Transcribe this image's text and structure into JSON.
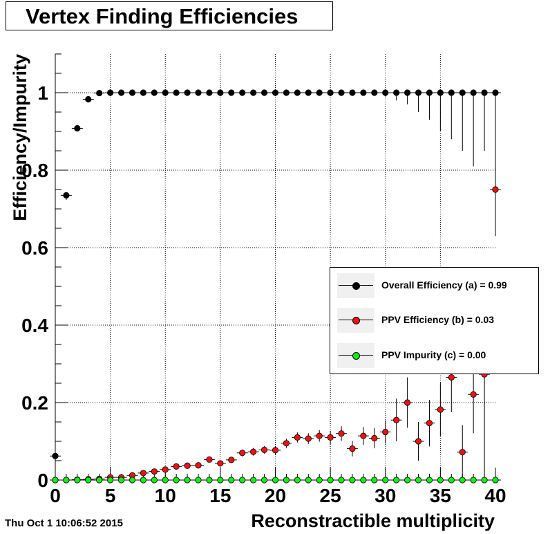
{
  "title": "Vertex Finding Efficiencies",
  "timestamp": "Thu Oct  1 10:06:52 2015",
  "legend": [
    {
      "label": "Overall Efficiency (a) = 0.99",
      "color": "#000000"
    },
    {
      "label": "PPV Efficiency (b) = 0.03",
      "color": "#ee1111"
    },
    {
      "label": "PPV Impurity (c) = 0.00",
      "color": "#11ee11"
    }
  ],
  "chart_data": {
    "type": "scatter",
    "title": "Vertex Finding Efficiencies",
    "xlabel": "Reconstractible multiplicity",
    "ylabel": "Efficiency/Impurity",
    "xlim": [
      0,
      40
    ],
    "ylim": [
      0,
      1.1
    ],
    "xticks": [
      0,
      5,
      10,
      15,
      20,
      25,
      30,
      35,
      40
    ],
    "yticks": [
      0,
      0.2,
      0.4,
      0.6,
      0.8,
      1
    ],
    "ytick_labels": [
      "0",
      "0.2",
      "0.4",
      "0.6",
      "0.8",
      "1"
    ],
    "grid": true,
    "legend_position": "right",
    "x": [
      0,
      1,
      2,
      3,
      4,
      5,
      6,
      7,
      8,
      9,
      10,
      11,
      12,
      13,
      14,
      15,
      16,
      17,
      18,
      19,
      20,
      21,
      22,
      23,
      24,
      25,
      26,
      27,
      28,
      29,
      30,
      31,
      32,
      33,
      34,
      35,
      36,
      37,
      38,
      39,
      40
    ],
    "series": [
      {
        "name": "Overall Efficiency (a) = 0.99",
        "color": "#000000",
        "values": [
          0.062,
          0.735,
          0.908,
          0.983,
          0.999,
          1,
          1,
          1,
          1,
          1,
          1,
          1,
          1,
          1,
          1,
          1,
          1,
          1,
          1,
          1,
          1,
          1,
          1,
          1,
          1,
          1,
          1,
          1,
          1,
          1,
          1,
          1,
          1,
          1,
          1,
          1,
          1,
          1,
          1,
          1,
          1
        ],
        "err_low": [
          0.004,
          0.012,
          0.006,
          0.005,
          0.003,
          0.002,
          0.001,
          0.001,
          0.001,
          0.001,
          0.001,
          0.001,
          0.001,
          0.001,
          0.001,
          0.001,
          0.001,
          0.001,
          0.001,
          0.001,
          0.001,
          0.001,
          0.001,
          0.001,
          0.001,
          0.002,
          0.003,
          0.004,
          0.006,
          0.008,
          0.01,
          0.02,
          0.03,
          0.05,
          0.07,
          0.1,
          0.12,
          0.15,
          0.19,
          0.15,
          0.2
        ]
      },
      {
        "name": "PPV Efficiency (b) = 0.03",
        "color": "#ee1111",
        "values": [
          0,
          0,
          0.001,
          0.002,
          0.003,
          0.007,
          0.007,
          0.012,
          0.018,
          0.022,
          0.027,
          0.035,
          0.037,
          0.038,
          0.053,
          0.043,
          0.052,
          0.07,
          0.073,
          0.078,
          0.077,
          0.095,
          0.11,
          0.107,
          0.114,
          0.11,
          0.12,
          0.081,
          0.114,
          0.108,
          0.124,
          0.155,
          0.2,
          0.1,
          0.147,
          0.182,
          0.265,
          0.072,
          0.221,
          0.273,
          0.75
        ],
        "err": [
          0,
          0.001,
          0.001,
          0.001,
          0.002,
          0.002,
          0.002,
          0.003,
          0.004,
          0.004,
          0.005,
          0.005,
          0.005,
          0.006,
          0.007,
          0.007,
          0.008,
          0.009,
          0.01,
          0.01,
          0.011,
          0.012,
          0.013,
          0.014,
          0.015,
          0.017,
          0.019,
          0.02,
          0.023,
          0.026,
          0.03,
          0.055,
          0.065,
          0.05,
          0.06,
          0.07,
          0.09,
          0.07,
          0.1,
          0.26,
          0.12
        ]
      },
      {
        "name": "PPV Impurity (c) = 0.00",
        "color": "#11ee11",
        "values": [
          0,
          0,
          0,
          0,
          0,
          0,
          0,
          0,
          0,
          0,
          0,
          0,
          0,
          0,
          0,
          0,
          0,
          0,
          0,
          0,
          0,
          0,
          0,
          0,
          0,
          0,
          0,
          0,
          0,
          0,
          0,
          0,
          0,
          0,
          0,
          0,
          0,
          0,
          0,
          0,
          0
        ]
      }
    ]
  }
}
